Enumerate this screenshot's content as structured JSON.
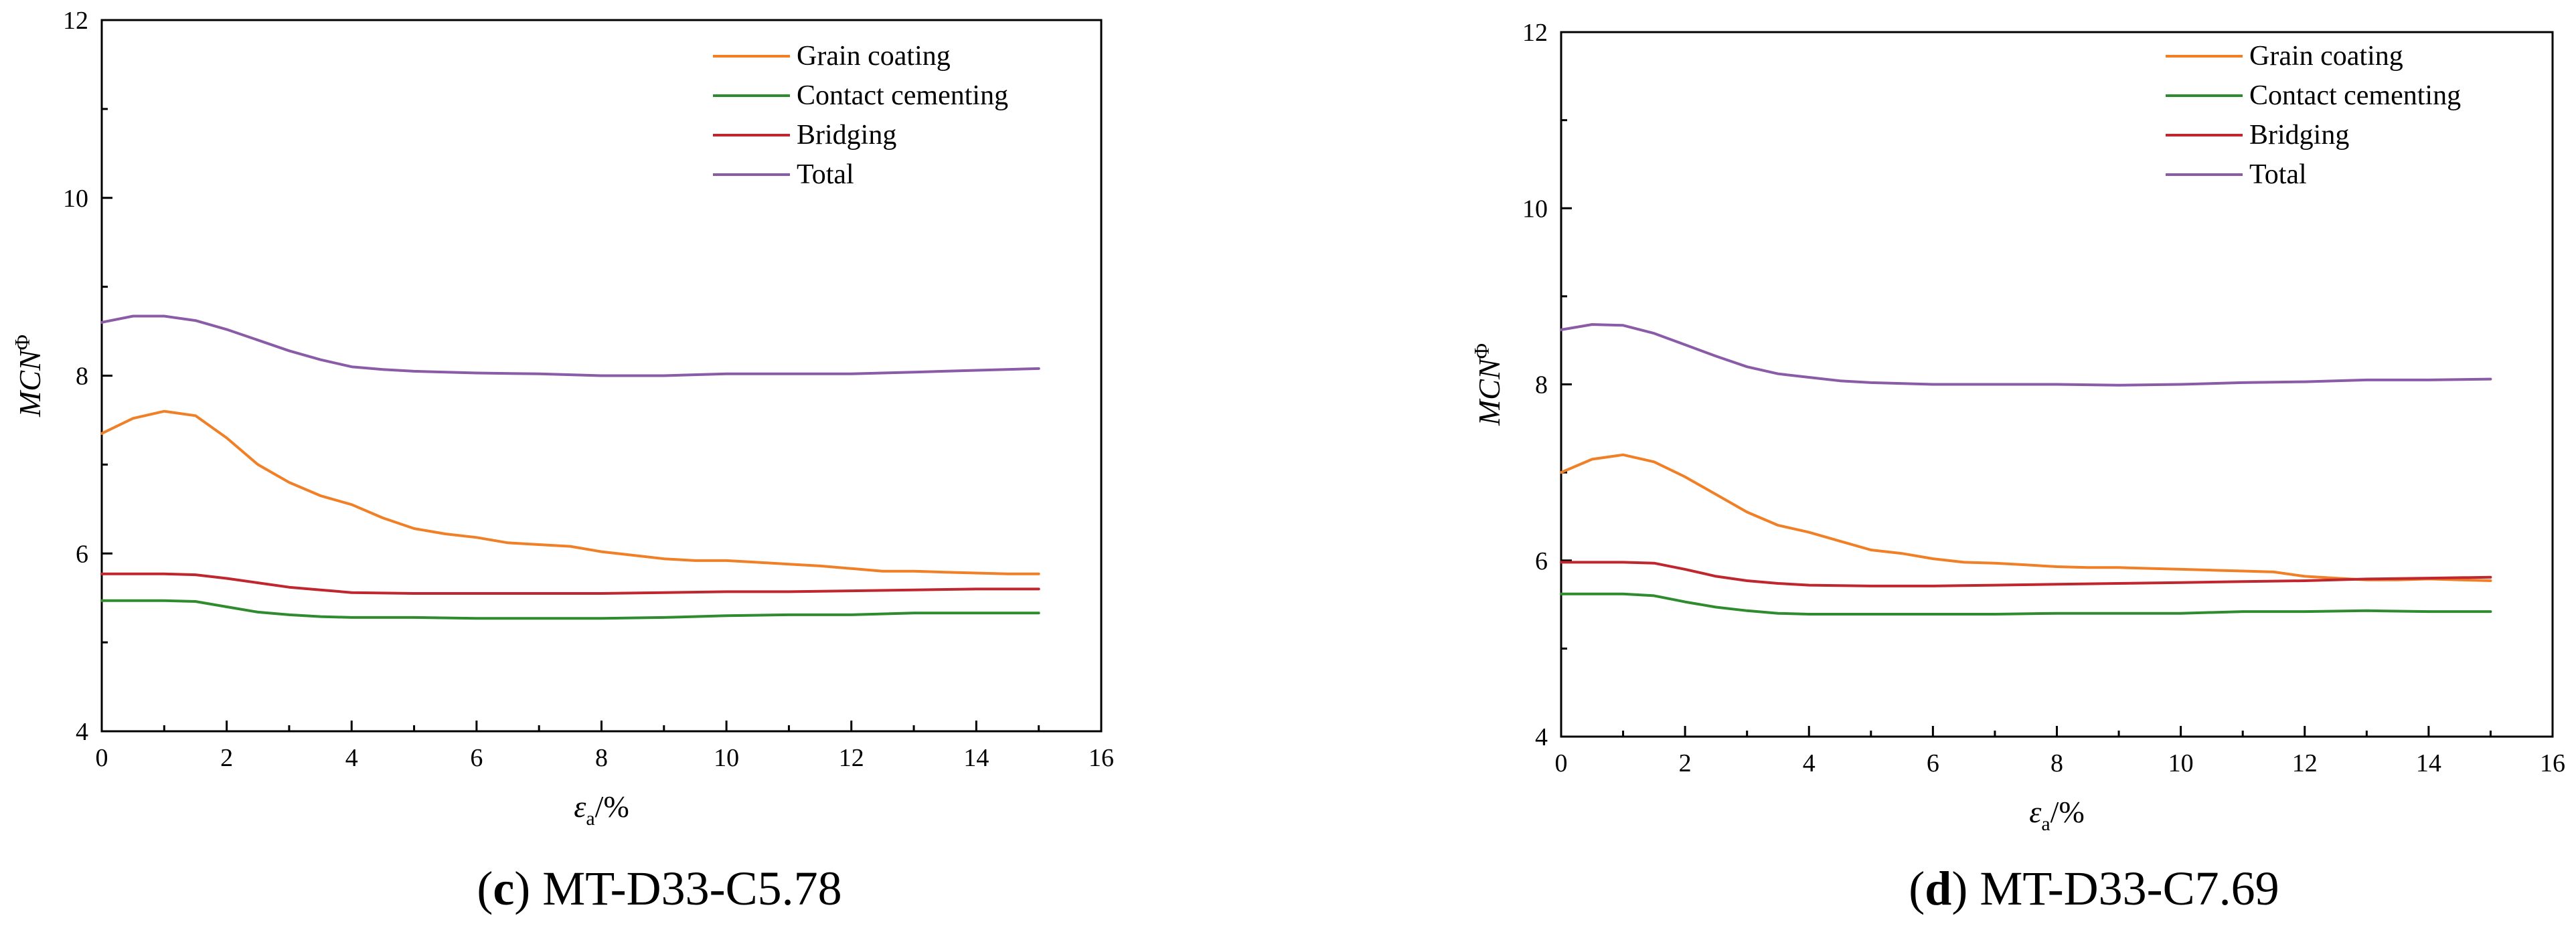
{
  "figure": {
    "colors": {
      "grain_coating": "#F07F26",
      "contact_cementing": "#2E8B2E",
      "bridging": "#C0262D",
      "total": "#8A5BA7"
    }
  },
  "chart_data": [
    {
      "type": "line",
      "caption_letter": "c",
      "caption_text": "MT-D33-C5.78",
      "xlabel_symbol": "ε",
      "xlabel_sub": "a",
      "xlabel_unit": "/%",
      "ylabel_main": "MCN",
      "ylabel_sup": "Φ",
      "xlim": [
        0,
        16
      ],
      "ylim": [
        4,
        12
      ],
      "xticks": [
        0,
        2,
        4,
        6,
        8,
        10,
        12,
        14,
        16
      ],
      "yticks": [
        4,
        6,
        8,
        10,
        12
      ],
      "series": [
        {
          "name": "Grain coating",
          "color_key": "grain_coating",
          "x": [
            0,
            0.5,
            1,
            1.5,
            2,
            2.5,
            3,
            3.5,
            4,
            4.5,
            5,
            5.5,
            6,
            6.5,
            7,
            7.5,
            8,
            8.5,
            9,
            9.5,
            10,
            10.5,
            11,
            11.5,
            12,
            12.5,
            13,
            13.5,
            14,
            14.5,
            15
          ],
          "y": [
            7.35,
            7.52,
            7.6,
            7.55,
            7.3,
            7.0,
            6.8,
            6.65,
            6.55,
            6.4,
            6.28,
            6.22,
            6.18,
            6.12,
            6.1,
            6.08,
            6.02,
            5.98,
            5.94,
            5.92,
            5.92,
            5.9,
            5.88,
            5.86,
            5.83,
            5.8,
            5.8,
            5.79,
            5.78,
            5.77,
            5.77
          ]
        },
        {
          "name": "Contact cementing",
          "color_key": "contact_cementing",
          "x": [
            0,
            0.5,
            1,
            1.5,
            2,
            2.5,
            3,
            3.5,
            4,
            5,
            6,
            7,
            8,
            9,
            10,
            11,
            12,
            13,
            14,
            15
          ],
          "y": [
            5.47,
            5.47,
            5.47,
            5.46,
            5.4,
            5.34,
            5.31,
            5.29,
            5.28,
            5.28,
            5.27,
            5.27,
            5.27,
            5.28,
            5.3,
            5.31,
            5.31,
            5.33,
            5.33,
            5.33
          ]
        },
        {
          "name": "Bridging",
          "color_key": "bridging",
          "x": [
            0,
            0.5,
            1,
            1.5,
            2,
            2.5,
            3,
            3.5,
            4,
            5,
            6,
            7,
            8,
            9,
            10,
            11,
            12,
            13,
            14,
            15
          ],
          "y": [
            5.77,
            5.77,
            5.77,
            5.76,
            5.72,
            5.67,
            5.62,
            5.59,
            5.56,
            5.55,
            5.55,
            5.55,
            5.55,
            5.56,
            5.57,
            5.57,
            5.58,
            5.59,
            5.6,
            5.6
          ]
        },
        {
          "name": "Total",
          "color_key": "total",
          "x": [
            0,
            0.5,
            1,
            1.5,
            2,
            2.5,
            3,
            3.5,
            4,
            4.5,
            5,
            6,
            7,
            8,
            9,
            10,
            11,
            12,
            13,
            14,
            15
          ],
          "y": [
            8.6,
            8.67,
            8.67,
            8.62,
            8.52,
            8.4,
            8.28,
            8.18,
            8.1,
            8.07,
            8.05,
            8.03,
            8.02,
            8.0,
            8.0,
            8.02,
            8.02,
            8.02,
            8.04,
            8.06,
            8.08
          ]
        }
      ]
    },
    {
      "type": "line",
      "caption_letter": "d",
      "caption_text": "MT-D33-C7.69",
      "xlabel_symbol": "ε",
      "xlabel_sub": "a",
      "xlabel_unit": "/%",
      "ylabel_main": "MCN",
      "ylabel_sup": "Φ",
      "xlim": [
        0,
        16
      ],
      "ylim": [
        4,
        12
      ],
      "xticks": [
        0,
        2,
        4,
        6,
        8,
        10,
        12,
        14,
        16
      ],
      "yticks": [
        4,
        6,
        8,
        10,
        12
      ],
      "series": [
        {
          "name": "Grain coating",
          "color_key": "grain_coating",
          "x": [
            0,
            0.5,
            1,
            1.5,
            2,
            2.5,
            3,
            3.5,
            4,
            4.5,
            5,
            5.5,
            6,
            6.5,
            7,
            7.5,
            8,
            8.5,
            9,
            9.5,
            10,
            10.5,
            11,
            11.5,
            12,
            12.5,
            13,
            13.5,
            14,
            14.5,
            15
          ],
          "y": [
            7.0,
            7.15,
            7.2,
            7.12,
            6.95,
            6.75,
            6.55,
            6.4,
            6.32,
            6.22,
            6.12,
            6.08,
            6.02,
            5.98,
            5.97,
            5.95,
            5.93,
            5.92,
            5.92,
            5.91,
            5.9,
            5.89,
            5.88,
            5.87,
            5.82,
            5.8,
            5.78,
            5.78,
            5.79,
            5.78,
            5.77
          ]
        },
        {
          "name": "Contact cementing",
          "color_key": "contact_cementing",
          "x": [
            0,
            0.5,
            1,
            1.5,
            2,
            2.5,
            3,
            3.5,
            4,
            5,
            6,
            7,
            8,
            9,
            10,
            11,
            12,
            13,
            14,
            15
          ],
          "y": [
            5.62,
            5.62,
            5.62,
            5.6,
            5.53,
            5.47,
            5.43,
            5.4,
            5.39,
            5.39,
            5.39,
            5.39,
            5.4,
            5.4,
            5.4,
            5.42,
            5.42,
            5.43,
            5.42,
            5.42
          ]
        },
        {
          "name": "Bridging",
          "color_key": "bridging",
          "x": [
            0,
            0.5,
            1,
            1.5,
            2,
            2.5,
            3,
            3.5,
            4,
            5,
            6,
            7,
            8,
            9,
            10,
            11,
            12,
            13,
            14,
            15
          ],
          "y": [
            5.98,
            5.98,
            5.98,
            5.97,
            5.9,
            5.82,
            5.77,
            5.74,
            5.72,
            5.71,
            5.71,
            5.72,
            5.73,
            5.74,
            5.75,
            5.76,
            5.77,
            5.79,
            5.8,
            5.81
          ]
        },
        {
          "name": "Total",
          "color_key": "total",
          "x": [
            0,
            0.5,
            1,
            1.5,
            2,
            2.5,
            3,
            3.5,
            4,
            4.5,
            5,
            6,
            7,
            8,
            9,
            10,
            11,
            12,
            13,
            14,
            15
          ],
          "y": [
            8.62,
            8.68,
            8.67,
            8.58,
            8.45,
            8.32,
            8.2,
            8.12,
            8.08,
            8.04,
            8.02,
            8.0,
            8.0,
            8.0,
            7.99,
            8.0,
            8.02,
            8.03,
            8.05,
            8.05,
            8.06
          ]
        }
      ]
    }
  ]
}
